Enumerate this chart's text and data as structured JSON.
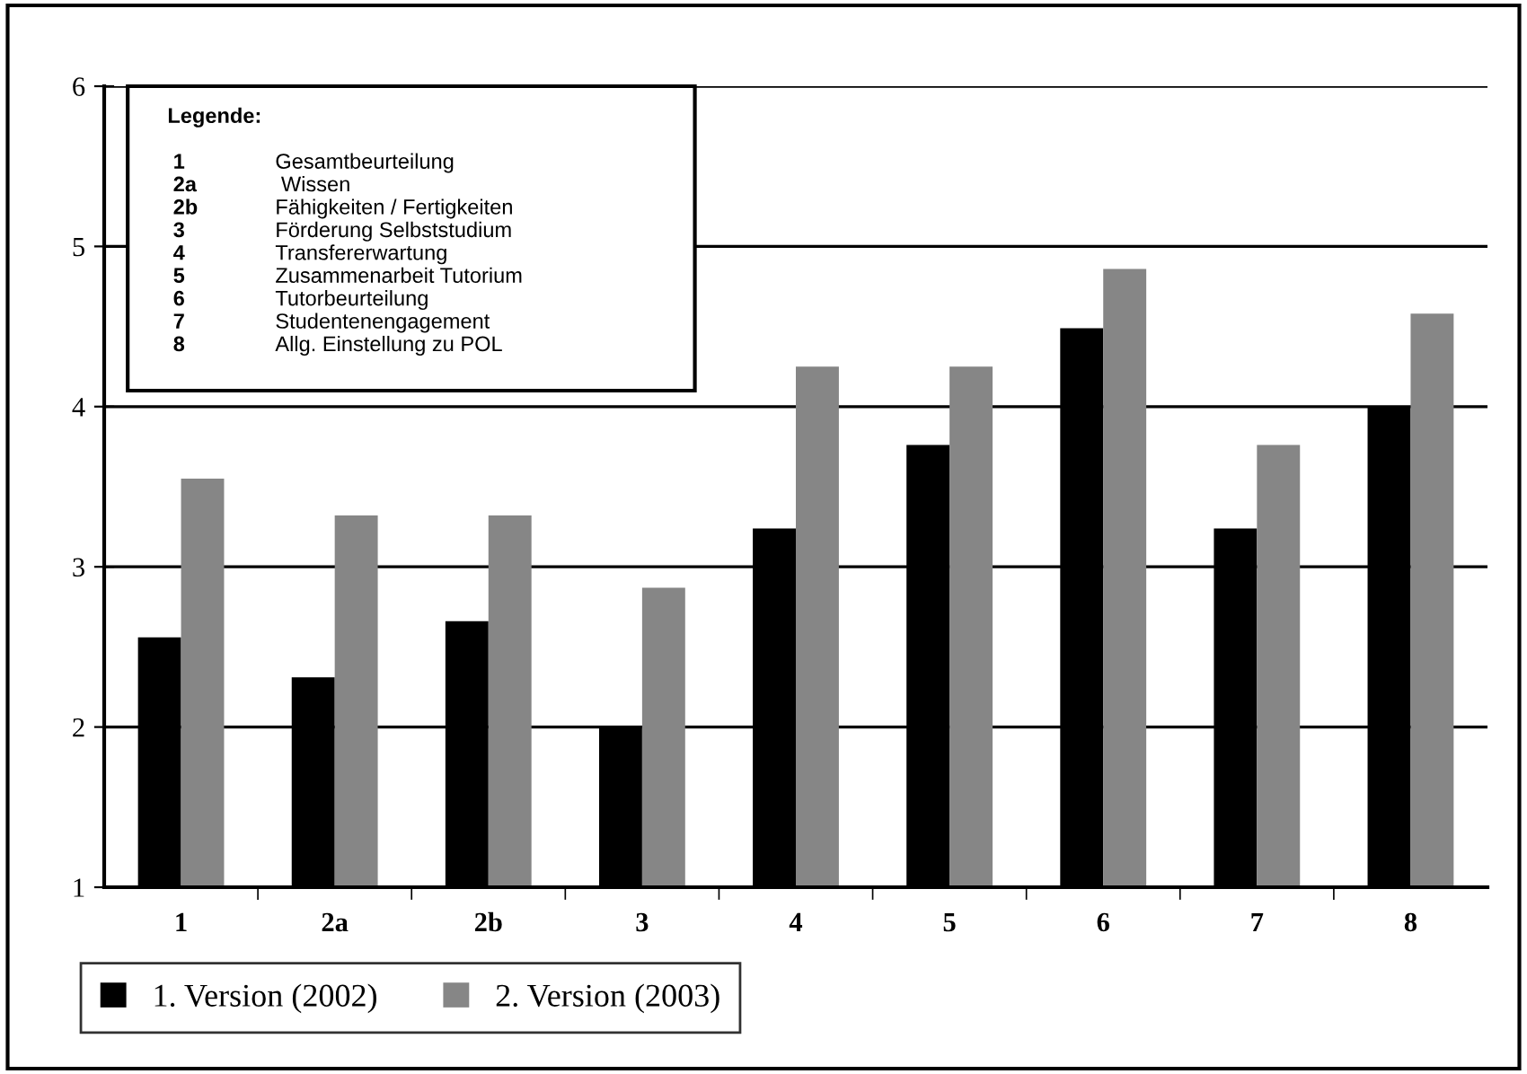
{
  "chart_data": {
    "type": "bar",
    "categories": [
      "1",
      "2a",
      "2b",
      "3",
      "4",
      "5",
      "6",
      "7",
      "8"
    ],
    "series": [
      {
        "name": "1. Version (2002)",
        "color": "#000000",
        "values": [
          2.56,
          2.31,
          2.66,
          2.0,
          3.24,
          3.76,
          4.49,
          3.24,
          4.0
        ]
      },
      {
        "name": "2. Version (2003)",
        "color": "#868686",
        "values": [
          3.55,
          3.32,
          3.32,
          2.87,
          4.25,
          4.25,
          4.86,
          3.76,
          4.58
        ]
      }
    ],
    "ylim": [
      1,
      6
    ],
    "yticks": [
      1,
      2,
      3,
      4,
      5,
      6
    ],
    "grid": "y",
    "legend": "bottom",
    "annotations": [
      "Legende:",
      "1 Gesamtbeurteilung",
      "2a  Wissen",
      "2b Fähigkeiten / Fertigkeiten",
      "3 Förderung Selbststudium",
      "4 Transfererwartung",
      "5 Zusammenarbeit Tutorium",
      "6 Tutorbeurteilung",
      "7 Studentenengagement",
      "8 Allg. Einstellung zu POL"
    ]
  }
}
